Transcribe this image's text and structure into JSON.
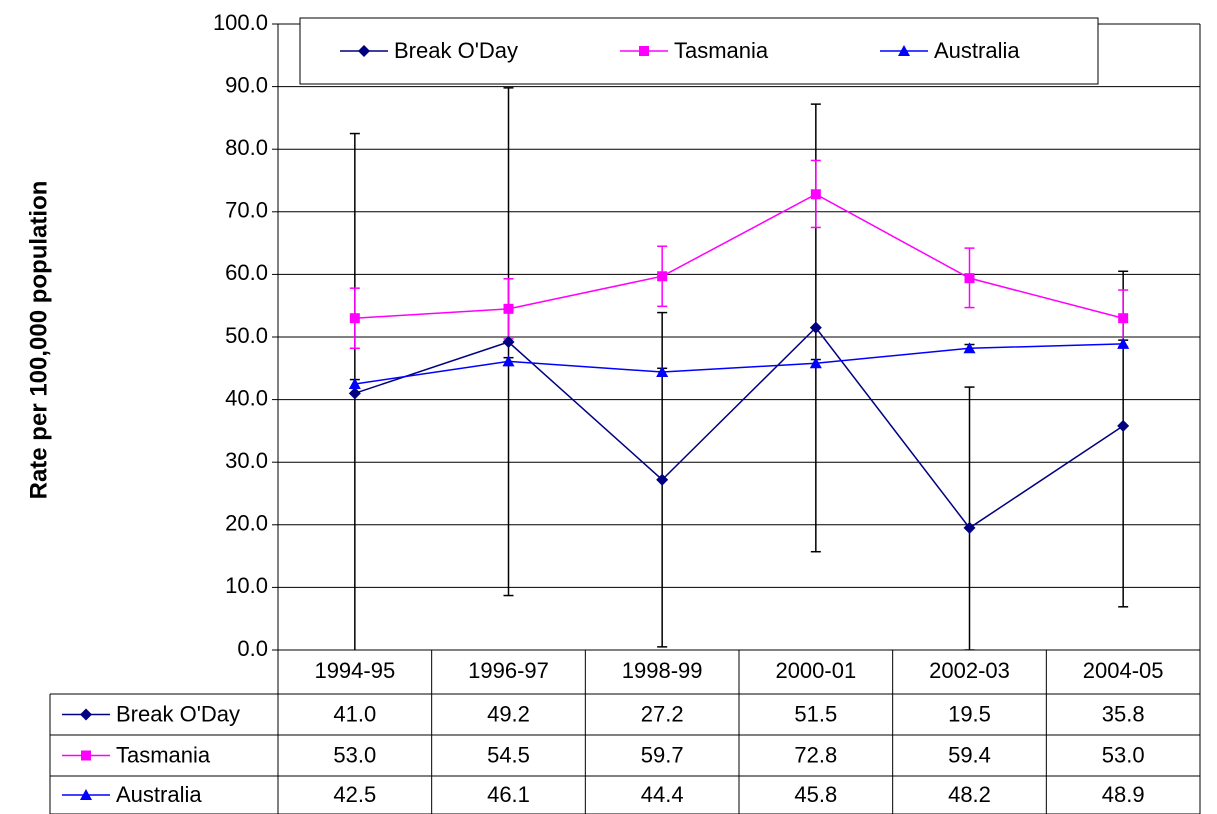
{
  "chart_data": {
    "type": "line",
    "y_label": "Rate per 100,000 population",
    "categories": [
      "1994-95",
      "1996-97",
      "1998-99",
      "2000-01",
      "2002-03",
      "2004-05"
    ],
    "ylim": [
      0,
      100
    ],
    "yticks": [
      {
        "value": 0,
        "label": "0.0"
      },
      {
        "value": 10,
        "label": "10.0"
      },
      {
        "value": 20,
        "label": "20.0"
      },
      {
        "value": 30,
        "label": "30.0"
      },
      {
        "value": 40,
        "label": "40.0"
      },
      {
        "value": 50,
        "label": "50.0"
      },
      {
        "value": 60,
        "label": "60.0"
      },
      {
        "value": 70,
        "label": "70.0"
      },
      {
        "value": 80,
        "label": "80.0"
      },
      {
        "value": 90,
        "label": "90.0"
      },
      {
        "value": 100,
        "label": "100.0"
      }
    ],
    "grid": true,
    "legend": "top",
    "series": [
      {
        "name": "Break O'Day",
        "color": "#000080",
        "marker": "diamond",
        "values": [
          41.0,
          49.2,
          27.2,
          51.5,
          19.5,
          35.8
        ],
        "value_labels": [
          "41.0",
          "49.2",
          "27.2",
          "51.5",
          "19.5",
          "35.8"
        ],
        "ci_low": [
          -0.5,
          8.7,
          0.5,
          15.7,
          0,
          6.9
        ],
        "ci_high": [
          82.5,
          89.8,
          53.9,
          87.2,
          42.0,
          60.5
        ]
      },
      {
        "name": "Tasmania",
        "color": "#ff00ff",
        "marker": "square",
        "values": [
          53.0,
          54.5,
          59.7,
          72.8,
          59.4,
          53.0
        ],
        "value_labels": [
          "53.0",
          "54.5",
          "59.7",
          "72.8",
          "59.4",
          "53.0"
        ],
        "ci_low": [
          48.2,
          49.7,
          54.9,
          67.5,
          54.7,
          48.5
        ],
        "ci_high": [
          57.8,
          59.3,
          64.5,
          78.2,
          64.2,
          57.5
        ]
      },
      {
        "name": "Australia",
        "color": "#0000ff",
        "marker": "triangle",
        "values": [
          42.5,
          46.1,
          44.4,
          45.8,
          48.2,
          48.9
        ],
        "value_labels": [
          "42.5",
          "46.1",
          "44.4",
          "45.8",
          "48.2",
          "48.9"
        ],
        "ci_low": [
          41.8,
          45.5,
          43.8,
          45.2,
          47.6,
          48.3
        ],
        "ci_high": [
          43.2,
          46.7,
          45.0,
          46.4,
          48.8,
          49.5
        ]
      }
    ]
  }
}
